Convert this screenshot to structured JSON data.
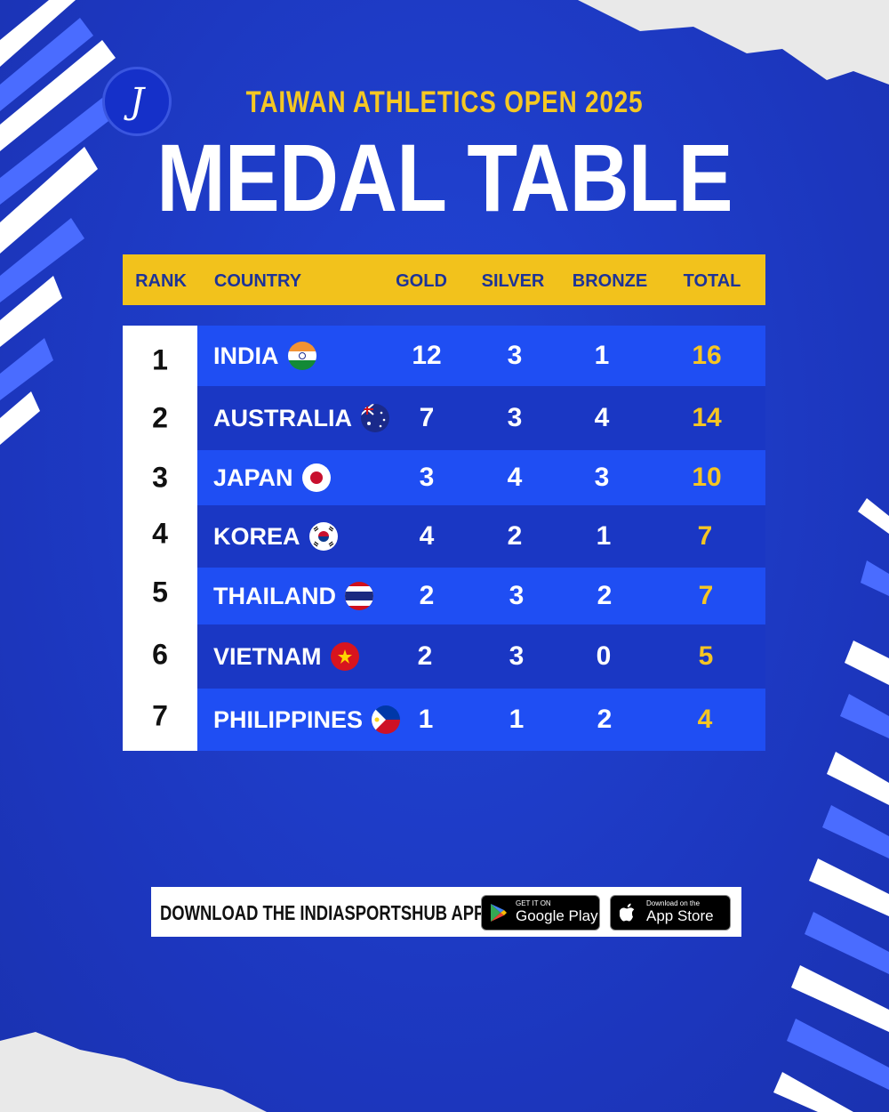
{
  "header": {
    "logo_letter": "J",
    "subtitle": "TAIWAN ATHLETICS OPEN 2025",
    "title": "MEDAL TABLE"
  },
  "table": {
    "columns": {
      "rank": "RANK",
      "country": "COUNTRY",
      "gold": "GOLD",
      "silver": "SILVER",
      "bronze": "BRONZE",
      "total": "TOTAL"
    },
    "rows": [
      {
        "rank": "1",
        "country": "INDIA",
        "flag": "india-flag-icon",
        "gold": "12",
        "silver": "3",
        "bronze": "1",
        "total": "16"
      },
      {
        "rank": "2",
        "country": "AUSTRALIA",
        "flag": "australia-flag-icon",
        "gold": "7",
        "silver": "3",
        "bronze": "4",
        "total": "14"
      },
      {
        "rank": "3",
        "country": "JAPAN",
        "flag": "japan-flag-icon",
        "gold": "3",
        "silver": "4",
        "bronze": "3",
        "total": "10"
      },
      {
        "rank": "4",
        "country": "KOREA",
        "flag": "korea-flag-icon",
        "gold": "4",
        "silver": "2",
        "bronze": "1",
        "total": "7"
      },
      {
        "rank": "5",
        "country": "THAILAND",
        "flag": "thailand-flag-icon",
        "gold": "2",
        "silver": "3",
        "bronze": "2",
        "total": "7"
      },
      {
        "rank": "6",
        "country": "VIETNAM",
        "flag": "vietnam-flag-icon",
        "gold": "2",
        "silver": "3",
        "bronze": "0",
        "total": "5"
      },
      {
        "rank": "7",
        "country": "PHILIPPINES",
        "flag": "philippines-flag-icon",
        "gold": "1",
        "silver": "1",
        "bronze": "2",
        "total": "4"
      }
    ]
  },
  "footer": {
    "banner_text": "DOWNLOAD THE INDIASPORTSHUB APP",
    "google_play": {
      "small": "GET IT ON",
      "big": "Google Play",
      "icon": "google-play-icon"
    },
    "app_store": {
      "small": "Download on the",
      "big": "App Store",
      "icon": "apple-icon"
    }
  },
  "colors": {
    "background": "#1d3acb",
    "header_bar": "#f2c21c",
    "row_light": "#1f4ef3",
    "row_dark": "#1a37c4",
    "total_text": "#f5c523",
    "subtitle_text": "#f5c823"
  }
}
